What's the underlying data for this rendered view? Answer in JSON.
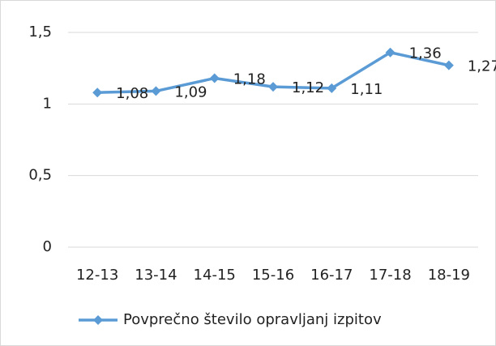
{
  "chart_data": {
    "type": "line",
    "categories": [
      "12-13",
      "13-14",
      "14-15",
      "15-16",
      "16-17",
      "17-18",
      "18-19"
    ],
    "series": [
      {
        "name": "Povprečno število opravljanj izpitov",
        "color": "#5b9bd5",
        "values": [
          1.08,
          1.09,
          1.18,
          1.12,
          1.11,
          1.36,
          1.27
        ],
        "value_labels": [
          "1,08",
          "1,09",
          "1,18",
          "1,12",
          "1,11",
          "1,36",
          "1,27"
        ]
      }
    ],
    "ylim": [
      0,
      1.5
    ],
    "yticks": [
      0,
      {
        "value": 0.5,
        "label": "0,5"
      },
      1,
      {
        "value": 1.5,
        "label": "1,5"
      }
    ],
    "grid": true,
    "legend": "bottom"
  }
}
